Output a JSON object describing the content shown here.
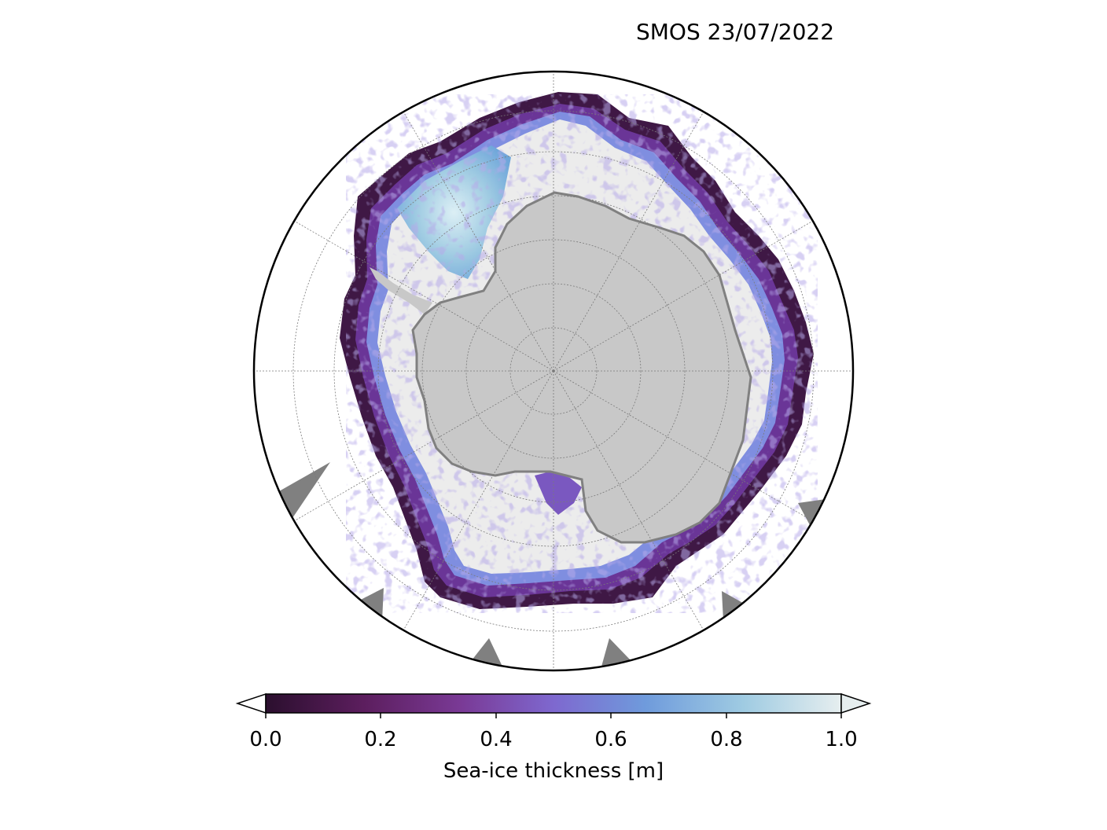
{
  "figure": {
    "title": "SMOS 23/07/2022",
    "projection": "south-polar-stereographic",
    "grid": true
  },
  "colorbar": {
    "label": "Sea-ice thickness [m]",
    "ticks": [
      "0.0",
      "0.2",
      "0.4",
      "0.6",
      "0.8",
      "1.0"
    ],
    "range": [
      0.0,
      1.0
    ],
    "extend": "both",
    "colors": [
      "#2b0f2e",
      "#5c1e5e",
      "#7a3a96",
      "#7e68cf",
      "#6f9bdc",
      "#9fcbe2",
      "#e6eeef"
    ]
  },
  "legend_colors": {
    "land": "#c8c8c8",
    "coast_ice_shelf": "#808080",
    "open_water": "#ffffff",
    "thick_ice": "#ececec",
    "thin_ice_edge": "#3f1845",
    "mid_ice": "#7b58c8",
    "weddell_blue": "#8cc3e0"
  }
}
